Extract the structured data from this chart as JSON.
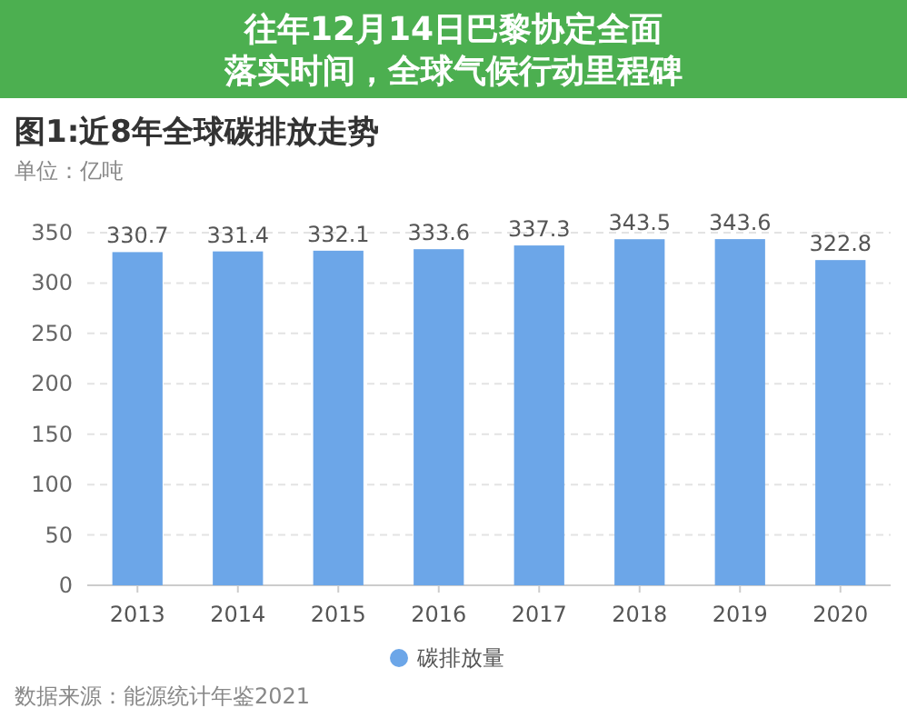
{
  "chart_data": {
    "type": "bar",
    "title": "图1:近8年全球碳排放走势",
    "subtitle": "单位：亿吨",
    "annotations": [
      "往年12月14日巴黎协定全面落实时间，全球气候行动里程碑",
      "数据来源：能源统计年鉴2021"
    ],
    "categories": [
      "2013",
      "2014",
      "2015",
      "2016",
      "2017",
      "2018",
      "2019",
      "2020"
    ],
    "series": [
      {
        "name": "碳排放量",
        "color": "#6ca6e8",
        "values": [
          330.7,
          331.4,
          332.1,
          333.6,
          337.3,
          343.5,
          343.6,
          322.8
        ]
      }
    ],
    "ylim": [
      0,
      350
    ],
    "yticks": [
      0,
      50,
      100,
      150,
      200,
      250,
      300,
      350
    ],
    "grid": "y",
    "legend": "bottom",
    "data_labels": true
  }
}
